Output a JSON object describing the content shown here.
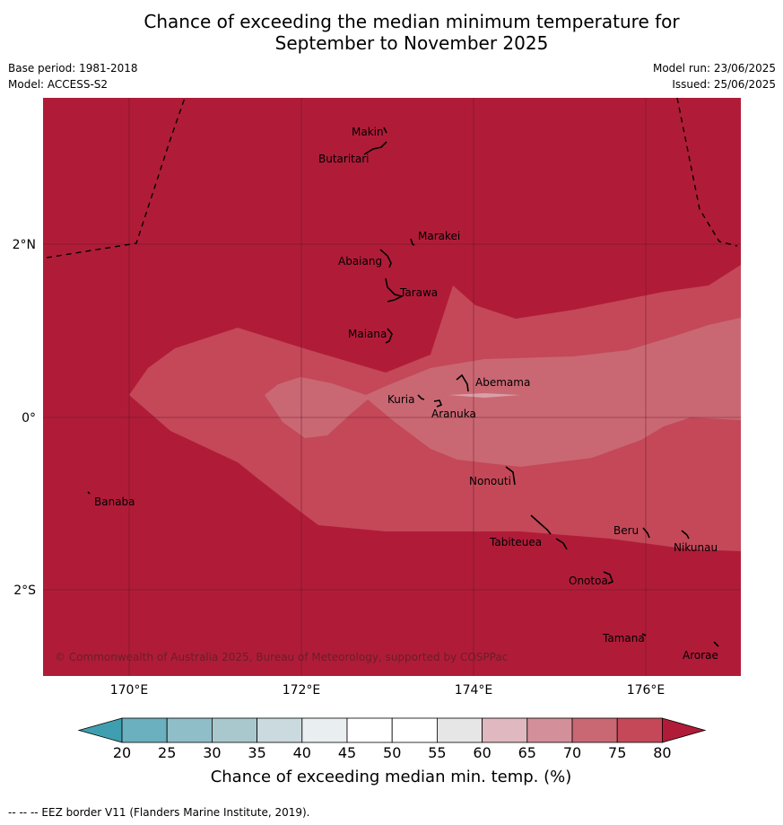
{
  "title": {
    "line1": "Chance of exceeding the median minimum temperature for",
    "line2": "September to November 2025"
  },
  "meta": {
    "base_period": "Base period: 1981-2018",
    "model": "Model: ACCESS-S2",
    "model_run": "Model run: 23/06/2025",
    "issued": "Issued: 25/06/2025"
  },
  "map": {
    "lat_labels": [
      "2°N",
      "0°",
      "2°S"
    ],
    "lon_labels": [
      "170°E",
      "172°E",
      "174°E",
      "176°E"
    ],
    "places": [
      "Makin",
      "Butaritari",
      "Marakei",
      "Abaiang",
      "Tarawa",
      "Maiana",
      "Abemama",
      "Kuria",
      "Aranuka",
      "Banaba",
      "Nonouti",
      "Beru",
      "Nikunau",
      "Tabiteuea",
      "Onotoa",
      "Tamana",
      "Arorae"
    ],
    "copyright": "© Commonwealth of Australia 2025, Bureau of Meteorology, supported by COSPPac",
    "fill_colors": {
      "band_75_80": "#c44858",
      "band_70_75": "#c96873",
      "band_above_80": "#b01c38"
    }
  },
  "colorbar": {
    "ticks": [
      "20",
      "25",
      "30",
      "35",
      "40",
      "45",
      "50",
      "55",
      "60",
      "65",
      "70",
      "75",
      "80"
    ],
    "colors": [
      "#3f9fb0",
      "#6ab0be",
      "#8fbec8",
      "#a9c8ce",
      "#cbdade",
      "#e9eff1",
      "#ffffff",
      "#ffffff",
      "#e6e6e6",
      "#e0b8bf",
      "#d3909a",
      "#c96873",
      "#c44858",
      "#b01c38"
    ],
    "label": "Chance of exceeding median min. temp. (%)"
  },
  "footer": "--  --  -- EEZ border V11 (Flanders Marine Institute, 2019)."
}
